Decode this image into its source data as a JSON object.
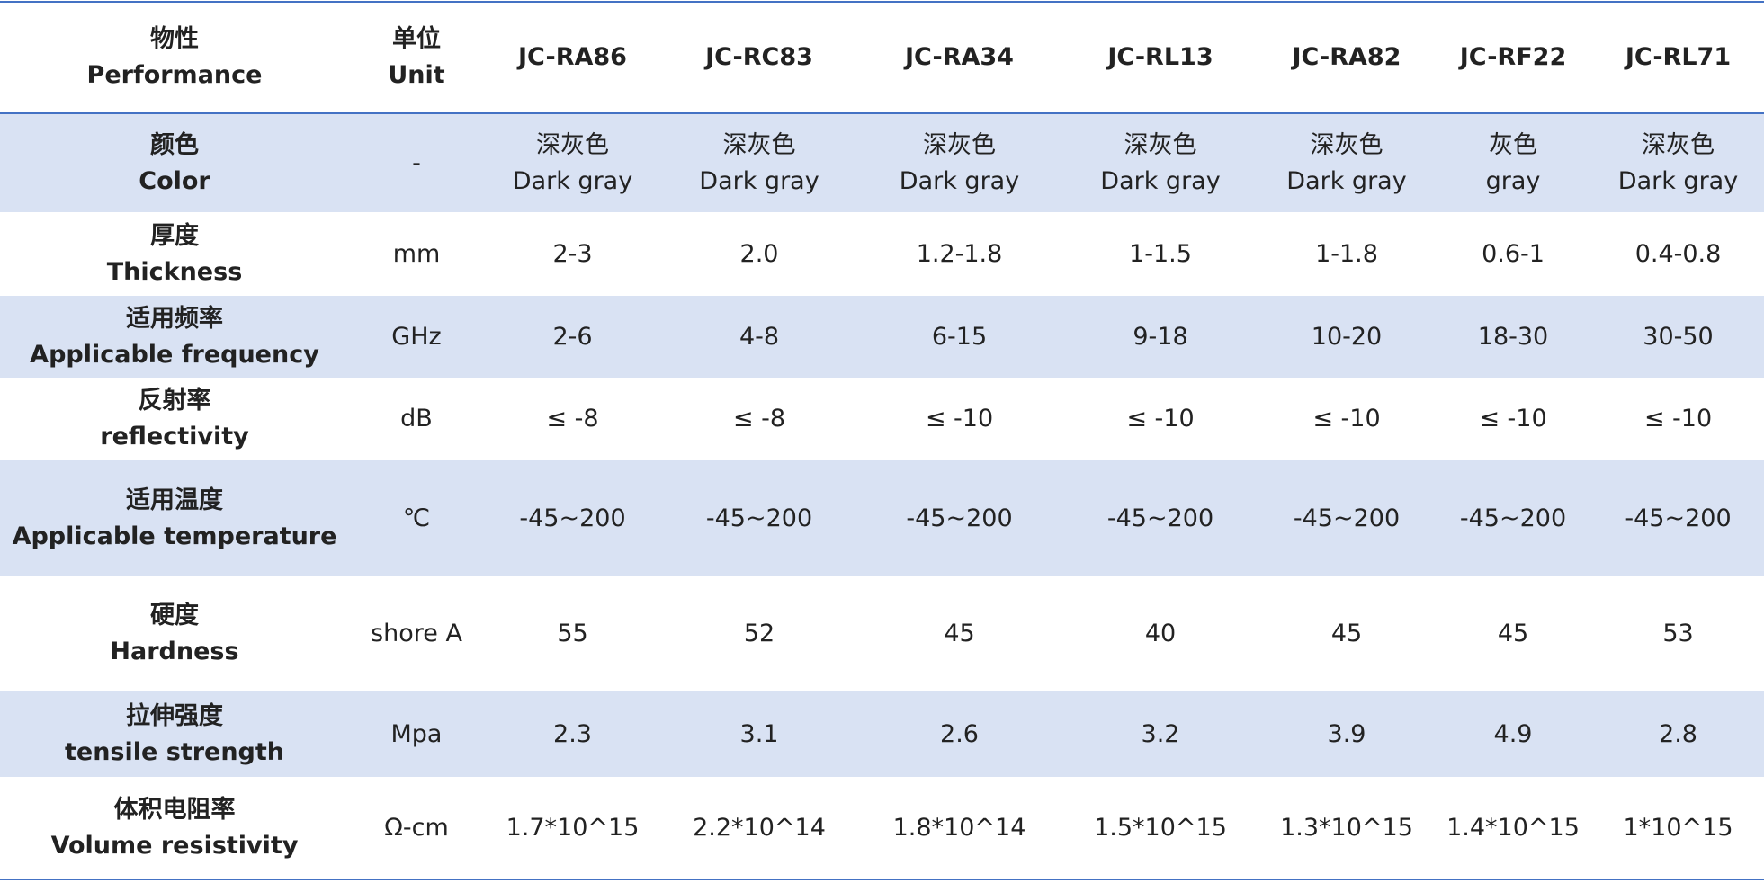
{
  "table": {
    "header": [
      [
        "物性",
        "Performance"
      ],
      [
        "单位",
        "Unit"
      ],
      [
        "JC-RA86"
      ],
      [
        "JC-RC83"
      ],
      [
        "JC-RA34"
      ],
      [
        "JC-RL13"
      ],
      [
        "JC-RA82"
      ],
      [
        "JC-RF22"
      ],
      [
        "JC-RL71"
      ]
    ],
    "rows": [
      [
        [
          "颜色",
          "Color"
        ],
        [
          "-"
        ],
        [
          "深灰色",
          "Dark gray"
        ],
        [
          "深灰色",
          "Dark gray"
        ],
        [
          "深灰色",
          "Dark gray"
        ],
        [
          "深灰色",
          "Dark gray"
        ],
        [
          "深灰色",
          "Dark gray"
        ],
        [
          "灰色",
          "gray"
        ],
        [
          "深灰色",
          "Dark gray"
        ]
      ],
      [
        [
          "厚度",
          "Thickness"
        ],
        [
          "mm"
        ],
        [
          "2-3"
        ],
        [
          "2.0"
        ],
        [
          "1.2-1.8"
        ],
        [
          "1-1.5"
        ],
        [
          "1-1.8"
        ],
        [
          "0.6-1"
        ],
        [
          "0.4-0.8"
        ]
      ],
      [
        [
          "适用频率",
          "Applicable frequency"
        ],
        [
          "GHz"
        ],
        [
          "2-6"
        ],
        [
          "4-8"
        ],
        [
          "6-15"
        ],
        [
          "9-18"
        ],
        [
          "10-20"
        ],
        [
          "18-30"
        ],
        [
          "30-50"
        ]
      ],
      [
        [
          "反射率",
          "reflectivity"
        ],
        [
          "dB"
        ],
        [
          "≤ -8"
        ],
        [
          "≤ -8"
        ],
        [
          "≤ -10"
        ],
        [
          "≤ -10"
        ],
        [
          "≤ -10"
        ],
        [
          "≤ -10"
        ],
        [
          "≤ -10"
        ]
      ],
      [
        [
          "适用温度",
          "Applicable temperature"
        ],
        [
          "℃"
        ],
        [
          "-45~200"
        ],
        [
          "-45~200"
        ],
        [
          "-45~200"
        ],
        [
          "-45~200"
        ],
        [
          "-45~200"
        ],
        [
          "-45~200"
        ],
        [
          "-45~200"
        ]
      ],
      [
        [
          "硬度",
          "Hardness"
        ],
        [
          "shore A"
        ],
        [
          "55"
        ],
        [
          "52"
        ],
        [
          "45"
        ],
        [
          "40"
        ],
        [
          "45"
        ],
        [
          "45"
        ],
        [
          "53"
        ]
      ],
      [
        [
          "拉伸强度",
          "tensile strength"
        ],
        [
          "Mpa"
        ],
        [
          "2.3"
        ],
        [
          "3.1"
        ],
        [
          "2.6"
        ],
        [
          "3.2"
        ],
        [
          "3.9"
        ],
        [
          "4.9"
        ],
        [
          "2.8"
        ]
      ],
      [
        [
          "体积电阻率",
          "Volume resistivity"
        ],
        [
          "Ω-cm"
        ],
        [
          "1.7*10^15"
        ],
        [
          "2.2*10^14"
        ],
        [
          "1.8*10^14"
        ],
        [
          "1.5*10^15"
        ],
        [
          "1.3*10^15"
        ],
        [
          "1.4*10^15"
        ],
        [
          "1*10^15"
        ]
      ]
    ]
  }
}
